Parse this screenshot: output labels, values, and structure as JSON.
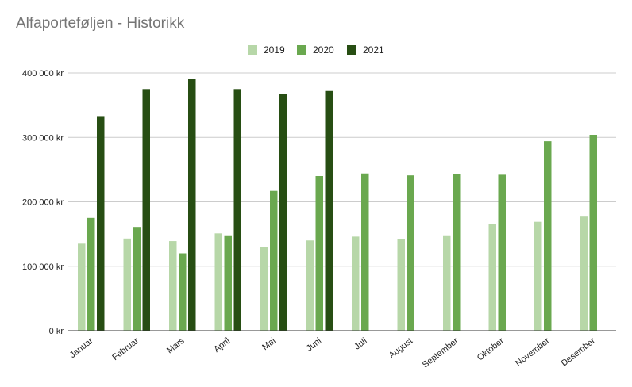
{
  "chart_data": {
    "type": "bar",
    "title": "Alfaporteføljen - Historikk",
    "xlabel": "",
    "ylabel": "",
    "categories": [
      "Januar",
      "Februar",
      "Mars",
      "April",
      "Mai",
      "Juni",
      "Juli",
      "August",
      "September",
      "Oktober",
      "November",
      "Desember"
    ],
    "series": [
      {
        "name": "2019",
        "color": "#b7d7a8",
        "values": [
          135000,
          143000,
          139000,
          151000,
          130000,
          140000,
          146000,
          142000,
          148000,
          166000,
          169000,
          177000
        ]
      },
      {
        "name": "2020",
        "color": "#6aa84f",
        "values": [
          175000,
          161000,
          120000,
          148000,
          217000,
          240000,
          244000,
          241000,
          243000,
          242000,
          294000,
          304000
        ]
      },
      {
        "name": "2021",
        "color": "#274e13",
        "values": [
          333000,
          375000,
          391000,
          375000,
          368000,
          372000,
          null,
          null,
          null,
          null,
          null,
          null
        ]
      }
    ],
    "ylim": [
      0,
      400000
    ],
    "y_ticks": [
      0,
      100000,
      200000,
      300000,
      400000
    ],
    "y_tick_labels": [
      "0 kr",
      "100 000 kr",
      "200 000 kr",
      "300 000 kr",
      "400 000 kr"
    ],
    "grid": true,
    "legend_position": "top-center"
  }
}
